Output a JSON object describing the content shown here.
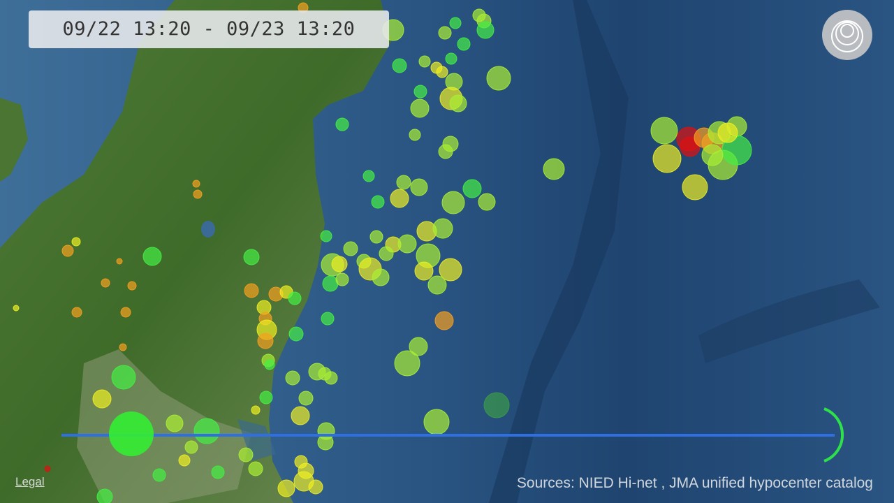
{
  "header": {
    "time_range": "09/22 13:20 - 09/23 13:20"
  },
  "footer": {
    "legal": "Legal",
    "sources": "Sources: NIED Hi-net , JMA unified hypocenter catalog"
  }
}
